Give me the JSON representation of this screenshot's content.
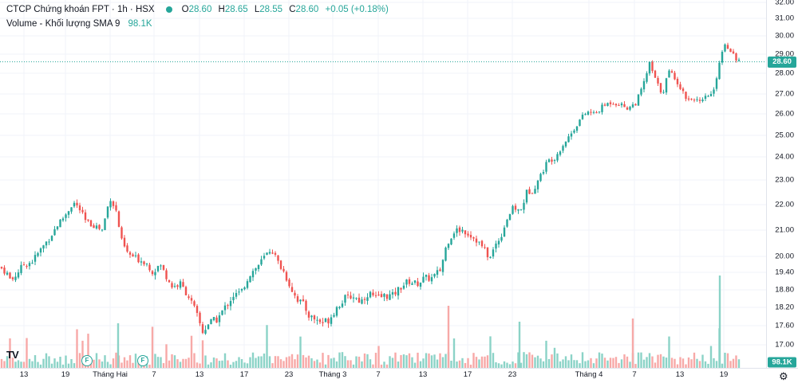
{
  "legend": {
    "symbol": "CTCP Chứng khoán FPT · 1h · HSX",
    "o_label": "O",
    "o_value": "28.60",
    "h_label": "H",
    "h_value": "28.65",
    "l_label": "L",
    "l_value": "28.55",
    "c_label": "C",
    "c_value": "28.60",
    "change": "+0.05 (+0.18%)",
    "volume_label": "Volume - Khối lượng SMA 9",
    "volume_value": "98.1K"
  },
  "badges": {
    "price": "28.60",
    "volume": "98.1K"
  },
  "colors": {
    "up": "#26a69a",
    "down": "#ef5350",
    "up_vol": "#8bd3c7",
    "down_vol": "#f7a9a7",
    "grid": "#f0f3fa",
    "axis_text": "#131722"
  },
  "markers": [
    "F",
    "F"
  ],
  "logo": "TV",
  "icons": {
    "settings": "gear-icon"
  },
  "chart_data": {
    "type": "candlestick",
    "title": "CTCP Chứng khoán FPT · 1h · HSX",
    "y_tick_labels": [
      "32.00",
      "31.00",
      "30.00",
      "29.00",
      "28.00",
      "27.00",
      "26.00",
      "25.00",
      "24.00",
      "23.00",
      "22.00",
      "21.00",
      "20.00",
      "19.40",
      "18.80",
      "18.20",
      "17.60",
      "17.00"
    ],
    "x_tick_labels": [
      "13",
      "19",
      "Tháng Hai",
      "7",
      "13",
      "17",
      "23",
      "Tháng 3",
      "7",
      "13",
      "17",
      "23",
      "Tháng 4",
      "7",
      "13",
      "19"
    ],
    "last_price": 28.6,
    "close_path": [
      [
        0,
        19.6
      ],
      [
        8,
        19.4
      ],
      [
        14,
        19.1
      ],
      [
        22,
        19.4
      ],
      [
        30,
        19.7
      ],
      [
        40,
        19.8
      ],
      [
        52,
        20.3
      ],
      [
        62,
        20.7
      ],
      [
        72,
        21.2
      ],
      [
        82,
        21.6
      ],
      [
        92,
        22.1
      ],
      [
        100,
        21.8
      ],
      [
        108,
        21.3
      ],
      [
        118,
        21.2
      ],
      [
        128,
        21.0
      ],
      [
        138,
        22.3
      ],
      [
        146,
        21.7
      ],
      [
        152,
        20.6
      ],
      [
        160,
        20.1
      ],
      [
        172,
        19.9
      ],
      [
        182,
        19.8
      ],
      [
        192,
        19.4
      ],
      [
        200,
        19.7
      ],
      [
        208,
        19.3
      ],
      [
        216,
        18.9
      ],
      [
        226,
        19.0
      ],
      [
        236,
        18.6
      ],
      [
        246,
        18.0
      ],
      [
        254,
        17.4
      ],
      [
        262,
        17.7
      ],
      [
        272,
        17.8
      ],
      [
        282,
        18.2
      ],
      [
        292,
        18.6
      ],
      [
        302,
        18.7
      ],
      [
        312,
        19.3
      ],
      [
        322,
        19.6
      ],
      [
        332,
        20.0
      ],
      [
        340,
        20.3
      ],
      [
        348,
        19.8
      ],
      [
        356,
        19.4
      ],
      [
        364,
        18.9
      ],
      [
        372,
        18.5
      ],
      [
        380,
        18.3
      ],
      [
        388,
        17.9
      ],
      [
        396,
        17.8
      ],
      [
        404,
        17.7
      ],
      [
        412,
        17.8
      ],
      [
        422,
        18.2
      ],
      [
        432,
        18.5
      ],
      [
        442,
        18.6
      ],
      [
        452,
        18.4
      ],
      [
        462,
        18.7
      ],
      [
        472,
        18.5
      ],
      [
        482,
        18.6
      ],
      [
        492,
        18.6
      ],
      [
        502,
        18.9
      ],
      [
        512,
        19.1
      ],
      [
        522,
        19.0
      ],
      [
        532,
        19.2
      ],
      [
        542,
        19.2
      ],
      [
        552,
        19.5
      ],
      [
        560,
        20.5
      ],
      [
        570,
        21.0
      ],
      [
        580,
        21.0
      ],
      [
        590,
        20.8
      ],
      [
        598,
        20.6
      ],
      [
        606,
        20.3
      ],
      [
        614,
        19.9
      ],
      [
        620,
        20.4
      ],
      [
        628,
        20.8
      ],
      [
        636,
        21.5
      ],
      [
        644,
        21.9
      ],
      [
        652,
        21.7
      ],
      [
        660,
        22.5
      ],
      [
        668,
        22.6
      ],
      [
        676,
        23.1
      ],
      [
        686,
        23.8
      ],
      [
        696,
        24.0
      ],
      [
        706,
        24.6
      ],
      [
        716,
        25.1
      ],
      [
        726,
        25.7
      ],
      [
        736,
        26.1
      ],
      [
        746,
        26.0
      ],
      [
        756,
        26.4
      ],
      [
        766,
        26.6
      ],
      [
        776,
        26.5
      ],
      [
        786,
        26.3
      ],
      [
        796,
        26.5
      ],
      [
        806,
        27.4
      ],
      [
        814,
        28.5
      ],
      [
        822,
        27.6
      ],
      [
        830,
        27.0
      ],
      [
        838,
        28.1
      ],
      [
        846,
        27.8
      ],
      [
        854,
        27.2
      ],
      [
        862,
        26.7
      ],
      [
        870,
        26.8
      ],
      [
        878,
        26.5
      ],
      [
        886,
        26.9
      ],
      [
        894,
        27.0
      ],
      [
        902,
        28.7
      ],
      [
        908,
        29.6
      ],
      [
        916,
        29.2
      ],
      [
        922,
        28.8
      ],
      [
        928,
        28.6
      ]
    ],
    "volume": {
      "max_label": "98.1K",
      "sma_period": 9
    }
  }
}
